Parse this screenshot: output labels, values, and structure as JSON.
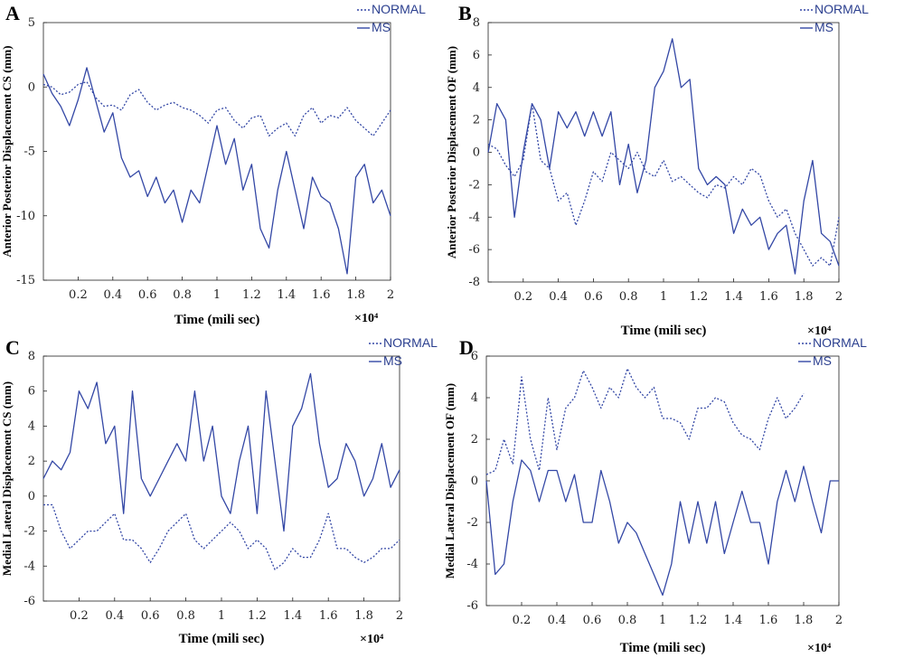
{
  "chart_data": [
    {
      "panel": "A",
      "type": "line",
      "ylabel": "Anterior Posterior Displacement CS (mm)",
      "xlabel": "Time (mili sec)",
      "x_multiplier": "×10⁴",
      "xlim": [
        0,
        2
      ],
      "ylim": [
        -15,
        5
      ],
      "xticks": [
        "0.2",
        "0.4",
        "0.6",
        "0.8",
        "1",
        "1.2",
        "1.4",
        "1.6",
        "1.8",
        "2"
      ],
      "yticks": [
        "5",
        "0",
        "-5",
        "-10",
        "-15"
      ],
      "legend": [
        "NORMAL",
        "MS"
      ],
      "series": [
        {
          "name": "NORMAL",
          "style": "dotted",
          "x": [
            0,
            0.05,
            0.1,
            0.15,
            0.2,
            0.25,
            0.3,
            0.35,
            0.4,
            0.45,
            0.5,
            0.55,
            0.6,
            0.65,
            0.7,
            0.75,
            0.8,
            0.85,
            0.9,
            0.95,
            1,
            1.05,
            1.1,
            1.15,
            1.2,
            1.25,
            1.3,
            1.35,
            1.4,
            1.45,
            1.5,
            1.55,
            1.6,
            1.65,
            1.7,
            1.75,
            1.8,
            1.85,
            1.9,
            1.95,
            2
          ],
          "values": [
            0.2,
            0,
            -0.6,
            -0.4,
            0.2,
            0.4,
            -0.8,
            -1.5,
            -1.4,
            -1.8,
            -0.6,
            -0.2,
            -1.2,
            -1.8,
            -1.4,
            -1.2,
            -1.6,
            -1.8,
            -2.2,
            -2.8,
            -1.8,
            -1.6,
            -2.6,
            -3.2,
            -2.4,
            -2.2,
            -3.8,
            -3.2,
            -2.8,
            -3.8,
            -2.2,
            -1.6,
            -2.8,
            -2.2,
            -2.4,
            -1.6,
            -2.6,
            -3.2,
            -3.8,
            -2.8,
            -1.8
          ]
        },
        {
          "name": "MS",
          "style": "solid",
          "x": [
            0,
            0.05,
            0.1,
            0.15,
            0.2,
            0.25,
            0.3,
            0.35,
            0.4,
            0.45,
            0.5,
            0.55,
            0.6,
            0.65,
            0.7,
            0.75,
            0.8,
            0.85,
            0.9,
            0.95,
            1,
            1.05,
            1.1,
            1.15,
            1.2,
            1.25,
            1.3,
            1.35,
            1.4,
            1.45,
            1.5,
            1.55,
            1.6,
            1.65,
            1.7,
            1.75,
            1.8,
            1.85,
            1.9,
            1.95,
            2
          ],
          "values": [
            1,
            -0.5,
            -1.5,
            -3,
            -1,
            1.5,
            -1,
            -3.5,
            -2,
            -5.5,
            -7,
            -6.5,
            -8.5,
            -7,
            -9,
            -8,
            -10.5,
            -8,
            -9,
            -6,
            -3,
            -6,
            -4,
            -8,
            -6,
            -11,
            -12.5,
            -8,
            -5,
            -8,
            -11,
            -7,
            -8.5,
            -9,
            -11,
            -14.5,
            -7,
            -6,
            -9,
            -8,
            -10
          ]
        }
      ]
    },
    {
      "panel": "B",
      "type": "line",
      "ylabel": "Anterior Posterior Displacement OF (mm)",
      "xlabel": "Time (mili sec)",
      "x_multiplier": "×10⁴",
      "xlim": [
        0,
        2
      ],
      "ylim": [
        -8,
        8
      ],
      "xticks": [
        "0.2",
        "0.4",
        "0.6",
        "0.8",
        "1",
        "1.2",
        "1.4",
        "1.6",
        "1.8",
        "2"
      ],
      "yticks": [
        "8",
        "6",
        "4",
        "2",
        "0",
        "-2",
        "-4",
        "-6",
        "-8"
      ],
      "legend": [
        "NORMAL",
        "MS"
      ],
      "series": [
        {
          "name": "NORMAL",
          "style": "dotted",
          "x": [
            0,
            0.05,
            0.1,
            0.15,
            0.2,
            0.25,
            0.3,
            0.35,
            0.4,
            0.45,
            0.5,
            0.55,
            0.6,
            0.65,
            0.7,
            0.75,
            0.8,
            0.85,
            0.9,
            0.95,
            1,
            1.05,
            1.1,
            1.15,
            1.2,
            1.25,
            1.3,
            1.35,
            1.4,
            1.45,
            1.5,
            1.55,
            1.6,
            1.65,
            1.7,
            1.75,
            1.8,
            1.85,
            1.9,
            1.95,
            2
          ],
          "values": [
            0.5,
            0.2,
            -0.8,
            -1.5,
            -0.5,
            3,
            -0.5,
            -1,
            -3,
            -2.5,
            -4.5,
            -3,
            -1.2,
            -1.8,
            0,
            -0.5,
            -1,
            0,
            -1.2,
            -1.5,
            -0.5,
            -1.8,
            -1.5,
            -2,
            -2.5,
            -2.8,
            -2,
            -2.2,
            -1.5,
            -2,
            -1,
            -1.4,
            -3,
            -4,
            -3.5,
            -5,
            -6,
            -7,
            -6.5,
            -7,
            -4
          ]
        },
        {
          "name": "MS",
          "style": "solid",
          "x": [
            0,
            0.05,
            0.1,
            0.15,
            0.2,
            0.25,
            0.3,
            0.35,
            0.4,
            0.45,
            0.5,
            0.55,
            0.6,
            0.65,
            0.7,
            0.75,
            0.8,
            0.85,
            0.9,
            0.95,
            1,
            1.05,
            1.1,
            1.15,
            1.2,
            1.25,
            1.3,
            1.35,
            1.4,
            1.45,
            1.5,
            1.55,
            1.6,
            1.65,
            1.7,
            1.75,
            1.8,
            1.85,
            1.9,
            1.95,
            2
          ],
          "values": [
            0,
            3,
            2,
            -4,
            0,
            3,
            2,
            -1,
            2.5,
            1.5,
            2.5,
            1,
            2.5,
            1,
            2.5,
            -2,
            0.5,
            -2.5,
            -0.5,
            4,
            5,
            7,
            4,
            4.5,
            -1,
            -2,
            -1.5,
            -2,
            -5,
            -3.5,
            -4.5,
            -4,
            -6,
            -5,
            -4.5,
            -7.5,
            -3,
            -0.5,
            -5,
            -5.5,
            -7
          ]
        }
      ]
    },
    {
      "panel": "C",
      "type": "line",
      "ylabel": "Medial Lateral Displacement CS (mm)",
      "xlabel": "Time (mili sec)",
      "x_multiplier": "×10⁴",
      "xlim": [
        0,
        2
      ],
      "ylim": [
        -6,
        8
      ],
      "xticks": [
        "0.2",
        "0.4",
        "0.6",
        "0.8",
        "1",
        "1.2",
        "1.4",
        "1.6",
        "1.8",
        "2"
      ],
      "yticks": [
        "8",
        "6",
        "4",
        "2",
        "0",
        "-2",
        "-4",
        "-6"
      ],
      "legend": [
        "NORMAL",
        "MS"
      ],
      "series": [
        {
          "name": "NORMAL",
          "style": "dotted",
          "x": [
            0,
            0.05,
            0.1,
            0.15,
            0.2,
            0.25,
            0.3,
            0.35,
            0.4,
            0.45,
            0.5,
            0.55,
            0.6,
            0.65,
            0.7,
            0.75,
            0.8,
            0.85,
            0.9,
            0.95,
            1,
            1.05,
            1.1,
            1.15,
            1.2,
            1.25,
            1.3,
            1.35,
            1.4,
            1.45,
            1.5,
            1.55,
            1.6,
            1.65,
            1.7,
            1.75,
            1.8,
            1.85,
            1.9,
            1.95,
            2
          ],
          "values": [
            -0.5,
            -0.5,
            -2,
            -3,
            -2.5,
            -2,
            -2,
            -1.5,
            -1,
            -2.5,
            -2.5,
            -3,
            -3.8,
            -3,
            -2,
            -1.5,
            -1,
            -2.5,
            -3,
            -2.5,
            -2,
            -1.5,
            -2,
            -3,
            -2.5,
            -3,
            -4.2,
            -3.8,
            -3,
            -3.5,
            -3.5,
            -2.5,
            -1,
            -3,
            -3,
            -3.5,
            -3.8,
            -3.5,
            -3,
            -3,
            -2.5
          ]
        },
        {
          "name": "MS",
          "style": "solid",
          "x": [
            0,
            0.05,
            0.1,
            0.15,
            0.2,
            0.25,
            0.3,
            0.35,
            0.4,
            0.45,
            0.5,
            0.55,
            0.6,
            0.65,
            0.7,
            0.75,
            0.8,
            0.85,
            0.9,
            0.95,
            1,
            1.05,
            1.1,
            1.15,
            1.2,
            1.25,
            1.3,
            1.35,
            1.4,
            1.45,
            1.5,
            1.55,
            1.6,
            1.65,
            1.7,
            1.75,
            1.8,
            1.85,
            1.9,
            1.95,
            2
          ],
          "values": [
            1,
            2,
            1.5,
            2.5,
            6,
            5,
            6.5,
            3,
            4,
            -1,
            6,
            1,
            0,
            1,
            2,
            3,
            2,
            6,
            2,
            4,
            0,
            -1,
            2,
            4,
            -1,
            6,
            2,
            -2,
            4,
            5,
            7,
            3,
            0.5,
            1,
            3,
            2,
            0,
            1,
            3,
            0.5,
            1.5
          ]
        }
      ]
    },
    {
      "panel": "D",
      "type": "line",
      "ylabel": "Medial Lateral Displacement OF (mm)",
      "xlabel": "Time (mili sec)",
      "x_multiplier": "×10⁴",
      "xlim": [
        0,
        2
      ],
      "ylim": [
        -6,
        6
      ],
      "xticks": [
        "0.2",
        "0.4",
        "0.6",
        "0.8",
        "1",
        "1.2",
        "1.4",
        "1.6",
        "1.8",
        "2"
      ],
      "yticks": [
        "6",
        "4",
        "2",
        "0",
        "-2",
        "-4",
        "-6"
      ],
      "legend": [
        "NORMAL",
        "MS"
      ],
      "series": [
        {
          "name": "NORMAL",
          "style": "dotted",
          "x": [
            0,
            0.05,
            0.1,
            0.15,
            0.2,
            0.25,
            0.3,
            0.35,
            0.4,
            0.45,
            0.5,
            0.55,
            0.6,
            0.65,
            0.7,
            0.75,
            0.8,
            0.85,
            0.9,
            0.95,
            1,
            1.05,
            1.1,
            1.15,
            1.2,
            1.25,
            1.3,
            1.35,
            1.4,
            1.45,
            1.5,
            1.55,
            1.6,
            1.65,
            1.7,
            1.75,
            1.8
          ],
          "values": [
            0.3,
            0.5,
            2,
            0.8,
            5,
            2,
            0.5,
            4,
            1.5,
            3.5,
            4,
            5.3,
            4.5,
            3.5,
            4.5,
            4,
            5.4,
            4.5,
            4,
            4.5,
            3,
            3,
            2.8,
            2,
            3.5,
            3.5,
            4,
            3.8,
            2.8,
            2.2,
            2,
            1.5,
            3,
            4,
            3,
            3.5,
            4.2
          ]
        },
        {
          "name": "MS",
          "style": "solid",
          "x": [
            0,
            0.05,
            0.1,
            0.15,
            0.2,
            0.25,
            0.3,
            0.35,
            0.4,
            0.45,
            0.5,
            0.55,
            0.6,
            0.65,
            0.7,
            0.75,
            0.8,
            0.85,
            0.9,
            0.95,
            1,
            1.05,
            1.1,
            1.15,
            1.2,
            1.25,
            1.3,
            1.35,
            1.4,
            1.45,
            1.5,
            1.55,
            1.6,
            1.65,
            1.7,
            1.75,
            1.8,
            1.85,
            1.9,
            1.95,
            2
          ],
          "values": [
            0,
            -4.5,
            -4,
            -1,
            1,
            0.5,
            -1,
            0.5,
            0.5,
            -1,
            0.3,
            -2,
            -2,
            0.5,
            -1,
            -3,
            -2,
            -2.5,
            -3.5,
            -4.5,
            -5.5,
            -4,
            -1,
            -3,
            -1,
            -3,
            -1,
            -3.5,
            -2,
            -0.5,
            -2,
            -2,
            -4,
            -1,
            0.5,
            -1,
            0.7,
            -1,
            -2.5,
            0,
            0
          ]
        }
      ]
    }
  ]
}
